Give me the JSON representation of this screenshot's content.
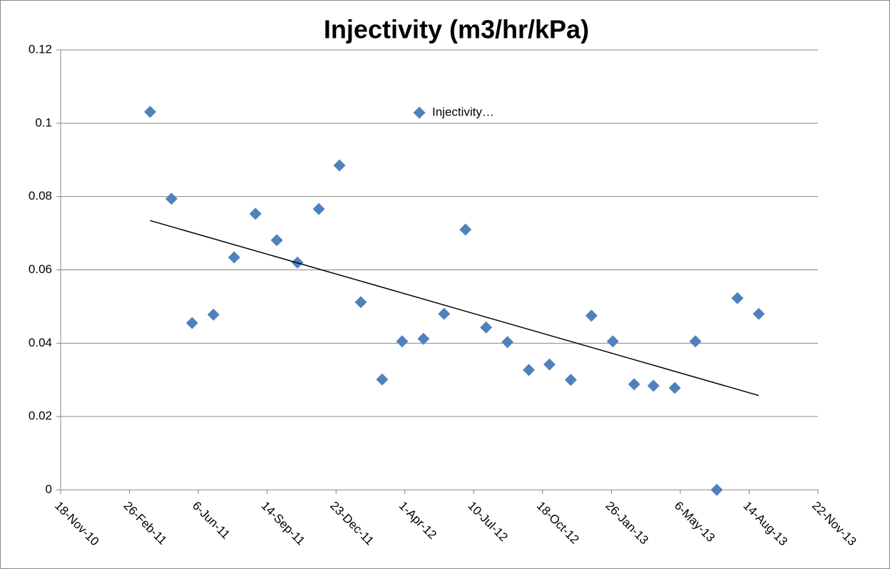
{
  "chart_data": {
    "type": "scatter",
    "title": "Injectivity (m3/hr/kPa)",
    "series": [
      {
        "name": "Injectivity…",
        "color": "#4f81bd",
        "x": [
          "2011-03-28",
          "2011-04-28",
          "2011-05-28",
          "2011-06-28",
          "2011-07-28",
          "2011-08-28",
          "2011-09-28",
          "2011-10-28",
          "2011-11-28",
          "2011-12-28",
          "2012-01-28",
          "2012-02-28",
          "2012-03-28",
          "2012-04-28",
          "2012-05-28",
          "2012-06-28",
          "2012-07-28",
          "2012-08-28",
          "2012-09-28",
          "2012-10-28",
          "2012-11-28",
          "2012-12-28",
          "2013-01-28",
          "2013-02-28",
          "2013-03-28",
          "2013-04-28",
          "2013-05-28",
          "2013-06-28",
          "2013-07-28",
          "2013-08-28"
        ],
        "values": [
          0.1031,
          0.0794,
          0.0455,
          0.0478,
          0.0634,
          0.0753,
          0.0681,
          0.062,
          0.0766,
          0.0885,
          0.0512,
          0.0301,
          0.0405,
          0.0412,
          0.048,
          0.071,
          0.0443,
          0.0403,
          0.0327,
          0.0342,
          0.03,
          0.0475,
          0.0405,
          0.0288,
          0.0284,
          0.0278,
          0.0405,
          0,
          0.0523,
          0.048
        ]
      }
    ],
    "trendline": "linear",
    "xlim": [
      "2010-11-18",
      "2013-11-22"
    ],
    "xticks": [
      {
        "value": "2010-11-18",
        "label": "18-Nov-10"
      },
      {
        "value": "2011-02-26",
        "label": "26-Feb-11"
      },
      {
        "value": "2011-06-06",
        "label": "6-Jun-11"
      },
      {
        "value": "2011-09-14",
        "label": "14-Sep-11"
      },
      {
        "value": "2011-12-23",
        "label": "23-Dec-11"
      },
      {
        "value": "2012-04-01",
        "label": "1-Apr-12"
      },
      {
        "value": "2012-07-10",
        "label": "10-Jul-12"
      },
      {
        "value": "2012-10-18",
        "label": "18-Oct-12"
      },
      {
        "value": "2013-01-26",
        "label": "26-Jan-13"
      },
      {
        "value": "2013-05-06",
        "label": "6-May-13"
      },
      {
        "value": "2013-08-14",
        "label": "14-Aug-13"
      },
      {
        "value": "2013-11-22",
        "label": "22-Nov-13"
      }
    ],
    "ylim": [
      0,
      0.12
    ],
    "yticks": [
      0,
      0.02,
      0.04,
      0.06,
      0.08,
      0.1,
      0.12
    ],
    "grid": true,
    "legend": "top"
  }
}
